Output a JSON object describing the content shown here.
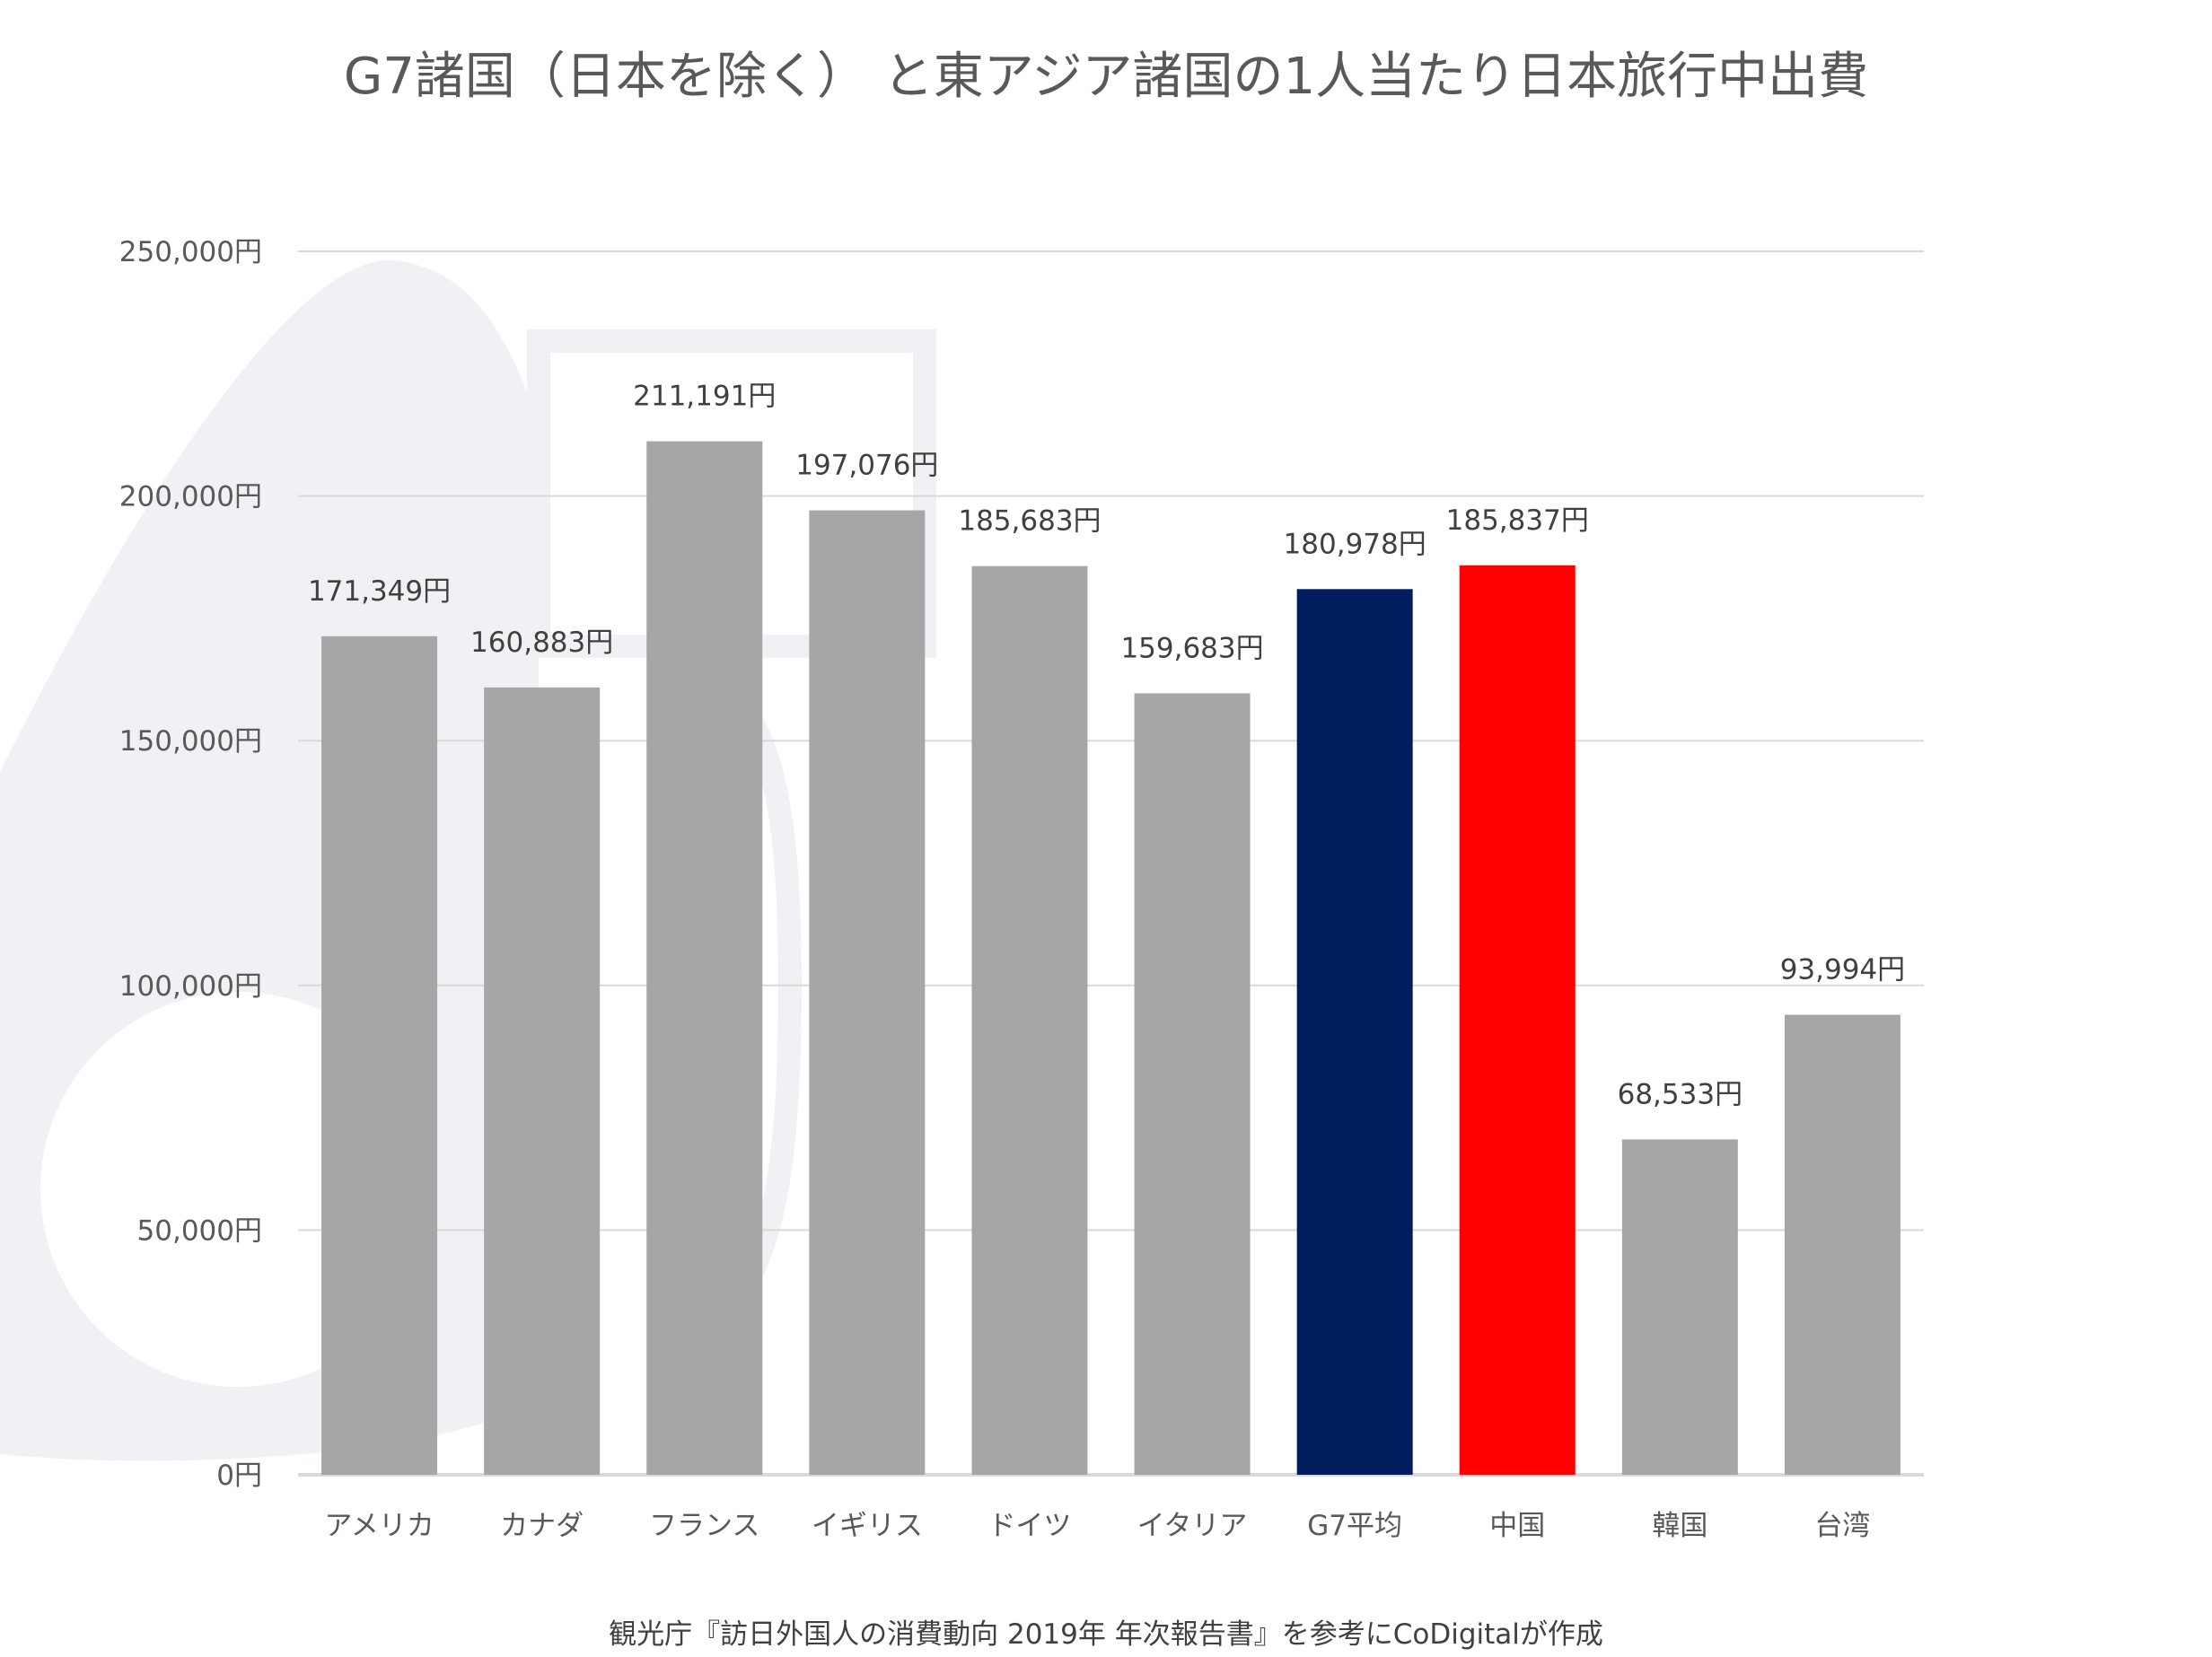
{
  "chart_data": {
    "type": "bar",
    "title": "G7諸国（日本を除く） と東アジア諸国の1人当たり日本旅行中出費",
    "categories": [
      "アメリカ",
      "カナダ",
      "フランス",
      "イギリス",
      "ドイツ",
      "イタリア",
      "G7平均",
      "中国",
      "韓国",
      "台湾"
    ],
    "values": [
      171349,
      160883,
      211191,
      197076,
      185683,
      159683,
      180978,
      185837,
      68533,
      93994
    ],
    "data_labels": [
      "171,349円",
      "160,883円",
      "211,191円",
      "197,076円",
      "185,683円",
      "159,683円",
      "180,978円",
      "185,837円",
      "68,533円",
      "93,994円"
    ],
    "colors": [
      "#a6a6a6",
      "#a6a6a6",
      "#a6a6a6",
      "#a6a6a6",
      "#a6a6a6",
      "#a6a6a6",
      "#001d5e",
      "#ff0000",
      "#a6a6a6",
      "#a6a6a6"
    ],
    "ylim": [
      0,
      250000
    ],
    "yticks": [
      0,
      50000,
      100000,
      150000,
      200000,
      250000
    ],
    "ytick_labels": [
      "0円",
      "50,000円",
      "100,000円",
      "150,000円",
      "200,000円",
      "250,000円"
    ],
    "grid": true,
    "xlabel": "",
    "ylabel": ""
  },
  "source": "観光庁『訪日外国人の消費動向 2019年 年次報告書』を参考にCoDigitalが作成"
}
